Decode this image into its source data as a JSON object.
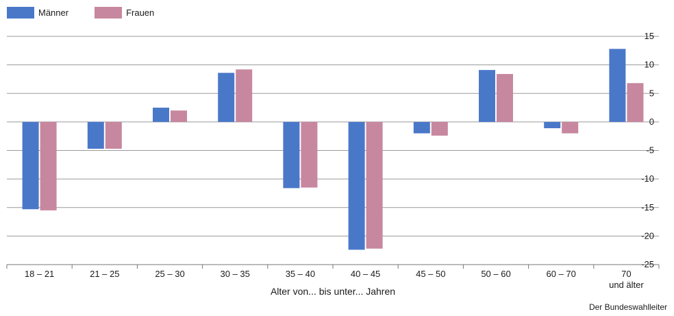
{
  "chart_data": {
    "type": "bar",
    "categories": [
      "18 – 21",
      "21 – 25",
      "25 – 30",
      "30 – 35",
      "35 – 40",
      "40 – 45",
      "45 – 50",
      "50 – 60",
      "60 – 70",
      "70|und älter"
    ],
    "series": [
      {
        "name": "Männer",
        "color": "#4a78c9",
        "values": [
          -15.3,
          -4.7,
          2.5,
          8.6,
          -11.6,
          -22.4,
          -2.0,
          9.1,
          -1.1,
          12.8
        ]
      },
      {
        "name": "Frauen",
        "color": "#c7879f",
        "values": [
          -15.5,
          -4.7,
          2.0,
          9.2,
          -11.5,
          -22.2,
          -2.4,
          8.4,
          -2.0,
          6.8
        ]
      }
    ],
    "xlabel": "Alter von... bis unter... Jahren",
    "ylabel": "",
    "ylim": [
      -25,
      15
    ],
    "yticks": [
      15,
      10,
      5,
      0,
      -5,
      -10,
      -15,
      -20,
      -25
    ],
    "grid": true,
    "legend_position": "top-left"
  },
  "source": "Der Bundeswahlleiter"
}
